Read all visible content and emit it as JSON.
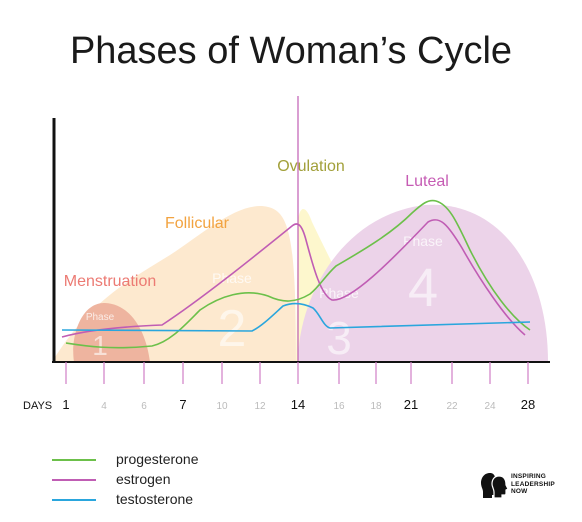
{
  "title": "Phases of Woman’s Cycle",
  "phases": [
    {
      "name": "Menstruation",
      "label_word": "Phase",
      "number": "1",
      "color": "#ec7a73"
    },
    {
      "name": "Follicular",
      "label_word": "Phase",
      "number": "2",
      "color": "#f2a340"
    },
    {
      "name": "Ovulation",
      "label_word": "Phase",
      "number": "3",
      "color": "#a2a03a"
    },
    {
      "name": "Luteal",
      "label_word": "Phase",
      "number": "4",
      "color": "#c65cb4"
    }
  ],
  "axis": {
    "label": "DAYS",
    "ticks_major": [
      "1",
      "7",
      "14",
      "21",
      "28"
    ],
    "ticks_minor": [
      "4",
      "6",
      "10",
      "12",
      "16",
      "18",
      "22",
      "24"
    ]
  },
  "legend": [
    {
      "name": "progesterone",
      "color": "#6cc04a"
    },
    {
      "name": "estrogen",
      "color": "#c05db4"
    },
    {
      "name": "testosterone",
      "color": "#2aa6dd"
    }
  ],
  "brand": {
    "text": "INSPIRING\nLEADERSHIP\nNOW",
    "icon": "two-heads-logo-icon"
  },
  "colors": {
    "menstruation_fill": "#eeb49f",
    "follicular_fill": "#fde9cf",
    "ovulation_fill": "#fdf6c8",
    "luteal_fill": "#ecd3e9",
    "ovulation_line": "#c05db4",
    "axis": "#111111",
    "tick": "#d07fc6"
  }
}
